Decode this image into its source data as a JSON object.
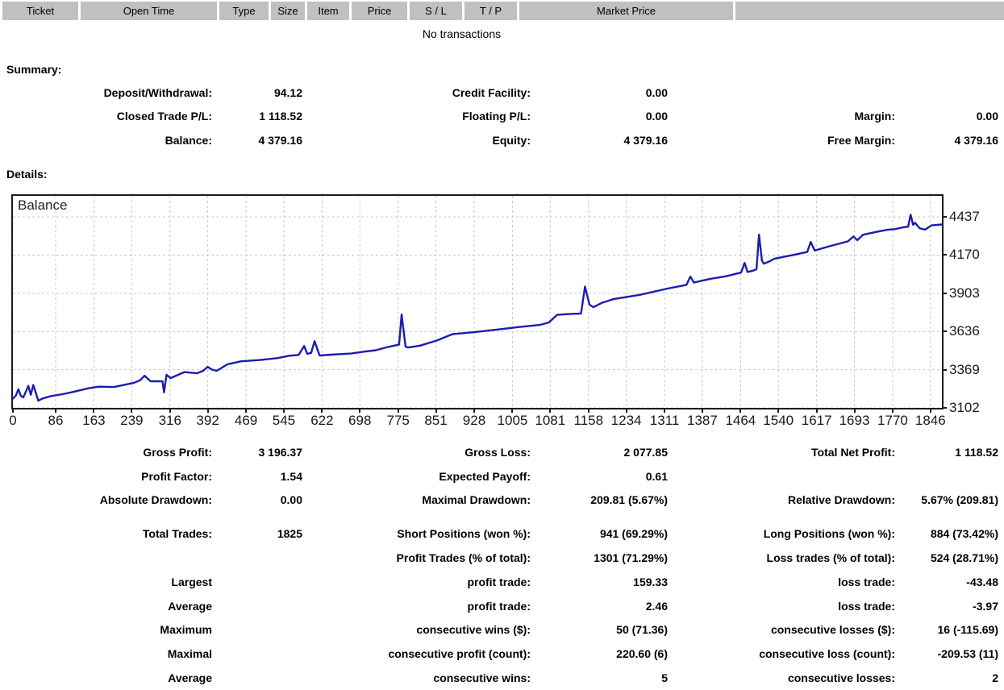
{
  "table": {
    "columns": [
      "Ticket",
      "Open Time",
      "Type",
      "Size",
      "Item",
      "Price",
      "S / L",
      "T / P",
      "Market Price"
    ],
    "empty_message": "No transactions"
  },
  "summary": {
    "title": "Summary:",
    "rows": [
      [
        "Deposit/Withdrawal:",
        "94.12",
        "Credit Facility:",
        "0.00",
        "",
        ""
      ],
      [
        "Closed Trade P/L:",
        "1 118.52",
        "Floating P/L:",
        "0.00",
        "Margin:",
        "0.00"
      ],
      [
        "Balance:",
        "4 379.16",
        "Equity:",
        "4 379.16",
        "Free Margin:",
        "4 379.16"
      ]
    ]
  },
  "details": {
    "title": "Details:",
    "rows": [
      [
        "Gross Profit:",
        "3 196.37",
        "Gross Loss:",
        "2 077.85",
        "Total Net Profit:",
        "1 118.52"
      ],
      [
        "Profit Factor:",
        "1.54",
        "Expected Payoff:",
        "0.61",
        "",
        ""
      ],
      [
        "Absolute Drawdown:",
        "0.00",
        "Maximal Drawdown:",
        "209.81 (5.67%)",
        "Relative Drawdown:",
        "5.67% (209.81)"
      ],
      [
        "Total Trades:",
        "1825",
        "Short Positions (won %):",
        "941 (69.29%)",
        "Long Positions (won %):",
        "884 (73.42%)"
      ],
      [
        "",
        "",
        "Profit Trades (% of total):",
        "1301 (71.29%)",
        "Loss trades (% of total):",
        "524 (28.71%)"
      ],
      [
        "Largest",
        "",
        "profit trade:",
        "159.33",
        "loss trade:",
        "-43.48"
      ],
      [
        "Average",
        "",
        "profit trade:",
        "2.46",
        "loss trade:",
        "-3.97"
      ],
      [
        "Maximum",
        "",
        "consecutive wins ($):",
        "50 (71.36)",
        "consecutive losses ($):",
        "16 (-115.69)"
      ],
      [
        "Maximal",
        "",
        "consecutive profit (count):",
        "220.60 (6)",
        "consecutive loss (count):",
        "-209.53 (11)"
      ],
      [
        "Average",
        "",
        "consecutive wins:",
        "5",
        "consecutive losses:",
        "2"
      ]
    ]
  },
  "chart_data": {
    "type": "line",
    "title": "Balance",
    "legend": [
      "Balance"
    ],
    "line_color": "#1c1cae",
    "grid_color": "#c9c9c9",
    "x_ticks": [
      0,
      86,
      163,
      239,
      316,
      392,
      469,
      545,
      622,
      698,
      775,
      851,
      928,
      1005,
      1081,
      1158,
      1234,
      1311,
      1387,
      1464,
      1540,
      1617,
      1693,
      1770,
      1846
    ],
    "y_ticks": [
      4437,
      4170,
      3903,
      3636,
      3369,
      3102
    ],
    "xlim": [
      0,
      1869
    ],
    "ylim": [
      3102,
      4584
    ],
    "xlabel": "",
    "ylabel": "",
    "points": [
      [
        0,
        3166
      ],
      [
        6,
        3188
      ],
      [
        11,
        3232
      ],
      [
        16,
        3186
      ],
      [
        21,
        3175
      ],
      [
        27,
        3222
      ],
      [
        31,
        3256
      ],
      [
        36,
        3194
      ],
      [
        41,
        3262
      ],
      [
        46,
        3208
      ],
      [
        51,
        3152
      ],
      [
        60,
        3168
      ],
      [
        75,
        3183
      ],
      [
        100,
        3198
      ],
      [
        123,
        3215
      ],
      [
        150,
        3238
      ],
      [
        172,
        3250
      ],
      [
        204,
        3248
      ],
      [
        228,
        3266
      ],
      [
        244,
        3278
      ],
      [
        256,
        3295
      ],
      [
        265,
        3327
      ],
      [
        277,
        3288
      ],
      [
        301,
        3288
      ],
      [
        304,
        3210
      ],
      [
        309,
        3333
      ],
      [
        317,
        3310
      ],
      [
        345,
        3352
      ],
      [
        370,
        3344
      ],
      [
        382,
        3360
      ],
      [
        392,
        3389
      ],
      [
        400,
        3370
      ],
      [
        410,
        3361
      ],
      [
        431,
        3406
      ],
      [
        458,
        3427
      ],
      [
        500,
        3438
      ],
      [
        533,
        3450
      ],
      [
        555,
        3466
      ],
      [
        575,
        3472
      ],
      [
        586,
        3534
      ],
      [
        592,
        3480
      ],
      [
        600,
        3486
      ],
      [
        607,
        3568
      ],
      [
        617,
        3468
      ],
      [
        640,
        3474
      ],
      [
        680,
        3482
      ],
      [
        706,
        3495
      ],
      [
        730,
        3505
      ],
      [
        755,
        3528
      ],
      [
        777,
        3545
      ],
      [
        782,
        3755
      ],
      [
        790,
        3530
      ],
      [
        795,
        3524
      ],
      [
        819,
        3537
      ],
      [
        852,
        3572
      ],
      [
        884,
        3617
      ],
      [
        930,
        3632
      ],
      [
        975,
        3650
      ],
      [
        1020,
        3668
      ],
      [
        1060,
        3682
      ],
      [
        1078,
        3699
      ],
      [
        1095,
        3752
      ],
      [
        1120,
        3758
      ],
      [
        1143,
        3762
      ],
      [
        1151,
        3950
      ],
      [
        1160,
        3823
      ],
      [
        1168,
        3806
      ],
      [
        1184,
        3835
      ],
      [
        1208,
        3862
      ],
      [
        1261,
        3892
      ],
      [
        1317,
        3936
      ],
      [
        1355,
        3962
      ],
      [
        1363,
        4020
      ],
      [
        1370,
        3978
      ],
      [
        1402,
        4003
      ],
      [
        1435,
        4022
      ],
      [
        1465,
        4048
      ],
      [
        1472,
        4116
      ],
      [
        1478,
        4052
      ],
      [
        1490,
        4062
      ],
      [
        1496,
        4072
      ],
      [
        1501,
        4313
      ],
      [
        1507,
        4130
      ],
      [
        1511,
        4110
      ],
      [
        1522,
        4126
      ],
      [
        1532,
        4145
      ],
      [
        1572,
        4172
      ],
      [
        1598,
        4192
      ],
      [
        1605,
        4262
      ],
      [
        1613,
        4202
      ],
      [
        1645,
        4234
      ],
      [
        1680,
        4266
      ],
      [
        1691,
        4300
      ],
      [
        1699,
        4274
      ],
      [
        1710,
        4312
      ],
      [
        1734,
        4330
      ],
      [
        1759,
        4347
      ],
      [
        1775,
        4352
      ],
      [
        1791,
        4364
      ],
      [
        1801,
        4369
      ],
      [
        1806,
        4452
      ],
      [
        1811,
        4382
      ],
      [
        1815,
        4396
      ],
      [
        1824,
        4358
      ],
      [
        1835,
        4348
      ],
      [
        1848,
        4378
      ],
      [
        1869,
        4384
      ]
    ]
  }
}
